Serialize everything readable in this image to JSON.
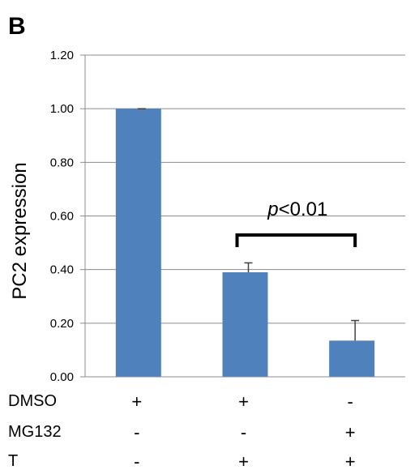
{
  "panel_label": "B",
  "chart_data": {
    "type": "bar",
    "title": "",
    "xlabel": "",
    "ylabel": "PC2 expression",
    "ylim": [
      0,
      1.2
    ],
    "yticks": [
      "0.00",
      "0.20",
      "0.40",
      "0.60",
      "0.80",
      "1.00",
      "1.20"
    ],
    "grid": true,
    "bar_color": "#4f81bd",
    "values": [
      1.0,
      0.39,
      0.135
    ],
    "errors": [
      0.0,
      0.035,
      0.075
    ],
    "conditions": [
      {
        "label": "DMSO",
        "marks": [
          "+",
          "+",
          "-"
        ]
      },
      {
        "label": "MG132",
        "marks": [
          "-",
          "-",
          "+"
        ]
      },
      {
        "label": "T",
        "marks": [
          "-",
          "+",
          "+"
        ]
      }
    ],
    "annotation": {
      "italic": "p",
      "text": "<0.01",
      "between": [
        1,
        2
      ]
    }
  }
}
